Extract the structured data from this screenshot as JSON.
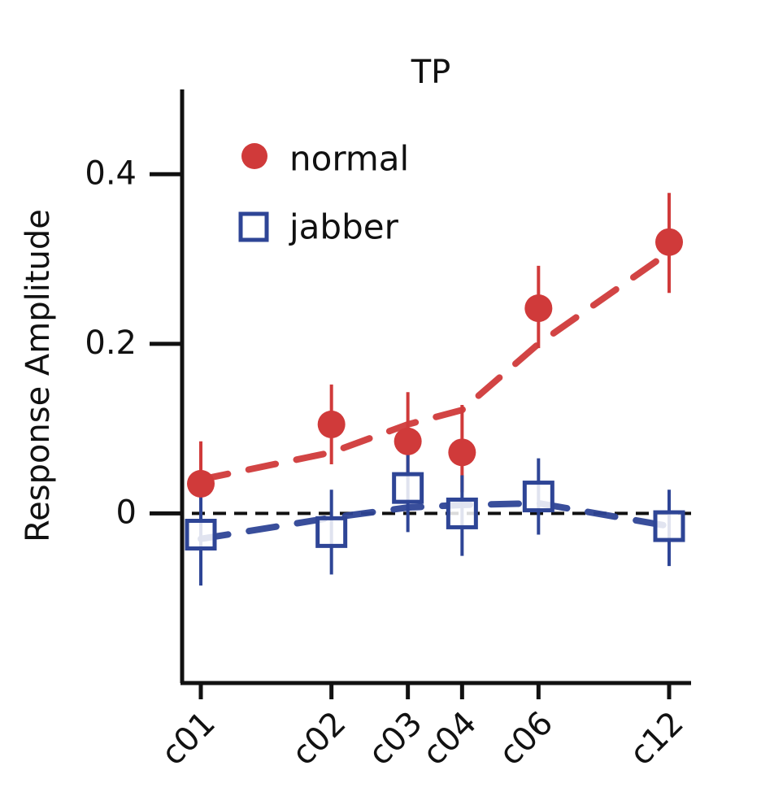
{
  "chart_data": {
    "type": "scatter",
    "title": "TP",
    "xlabel": "",
    "ylabel": "Response Amplitude",
    "categories": [
      "c01",
      "c02",
      "c03",
      "c04",
      "c06",
      "c12"
    ],
    "x": [
      1,
      2,
      3,
      4,
      6,
      12
    ],
    "x_scale": "log",
    "ylim": [
      -0.2,
      0.5
    ],
    "yticks": [
      {
        "value": 0,
        "label": "0"
      },
      {
        "value": 0.2,
        "label": "0.2"
      },
      {
        "value": 0.4,
        "label": "0.4"
      }
    ],
    "zero_line": true,
    "grid": false,
    "legend_position": "top-left",
    "series": [
      {
        "name": "normal",
        "marker": "filled-circle",
        "color": "#d03a3a",
        "values": [
          0.035,
          0.105,
          0.085,
          0.072,
          0.242,
          0.32
        ],
        "err_low": [
          -0.01,
          0.058,
          0.04,
          0.025,
          0.195,
          0.26
        ],
        "err_high": [
          0.085,
          0.152,
          0.143,
          0.128,
          0.292,
          0.378
        ],
        "fit": [
          0.04,
          0.072,
          0.105,
          0.122,
          0.2,
          0.308
        ]
      },
      {
        "name": "jabber",
        "marker": "open-square",
        "color": "#2e4596",
        "values": [
          -0.025,
          -0.022,
          0.03,
          0.0,
          0.02,
          -0.015
        ],
        "err_low": [
          -0.085,
          -0.072,
          -0.022,
          -0.05,
          -0.025,
          -0.062
        ],
        "err_high": [
          0.028,
          0.028,
          0.085,
          0.045,
          0.065,
          0.028
        ],
        "fit": [
          -0.03,
          -0.005,
          0.007,
          0.01,
          0.012,
          -0.015
        ]
      }
    ]
  }
}
